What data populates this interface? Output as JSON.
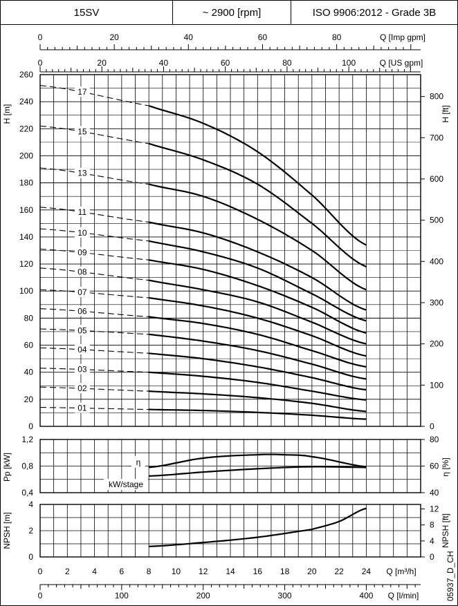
{
  "header": {
    "model": "15SV",
    "speed": "~ 2900 [rpm]",
    "standard": "ISO 9906:2012 - Grade 3B"
  },
  "axes": {
    "q_imp_gpm": {
      "label": "Q [Imp gpm]",
      "ticks": [
        "0",
        "20",
        "40",
        "60",
        "80"
      ]
    },
    "q_us_gpm": {
      "label": "Q [US gpm]",
      "ticks": [
        "0",
        "20",
        "40",
        "60",
        "80",
        "100"
      ]
    },
    "h_m": {
      "label": "H [m]",
      "ticks": [
        "0",
        "20",
        "40",
        "60",
        "80",
        "100",
        "120",
        "140",
        "160",
        "180",
        "200",
        "220",
        "240",
        "260"
      ]
    },
    "h_ft": {
      "label": "H [ft]",
      "ticks": [
        "0",
        "100",
        "200",
        "300",
        "400",
        "500",
        "600",
        "700",
        "800"
      ]
    },
    "pp_kw": {
      "label": "Pp [kW]",
      "ticks": [
        "0,4",
        "0,8",
        "1,2"
      ]
    },
    "eta": {
      "label": "η [%]",
      "ticks": [
        "40",
        "60",
        "80"
      ]
    },
    "npsh_m": {
      "label": "NPSH [m]",
      "ticks": [
        "0",
        "2",
        "4"
      ]
    },
    "npsh_ft": {
      "label": "NPSH [ft]",
      "ticks": [
        "0",
        "4",
        "8",
        "12"
      ]
    },
    "q_m3h": {
      "label": "Q [m³/h]",
      "ticks": [
        "0",
        "2",
        "4",
        "6",
        "8",
        "10",
        "12",
        "14",
        "16",
        "18",
        "20",
        "22",
        "24"
      ]
    },
    "q_lmin": {
      "label": "Q [l/min]",
      "ticks": [
        "0",
        "100",
        "200",
        "300",
        "400"
      ]
    }
  },
  "stage_labels": {
    "01": "01",
    "02": "02",
    "03": "03",
    "04": "04",
    "05": "05",
    "06": "06",
    "07": "07",
    "08": "08",
    "09": "09",
    "10": "10",
    "11": "11",
    "13": "13",
    "15": "15",
    "17": "17"
  },
  "power_labels": {
    "eta": "η",
    "kw": "kW/stage"
  },
  "code": "05937_D_CH",
  "chart_data": [
    {
      "type": "line",
      "title": "",
      "xlabel": "Q [m³/h]",
      "ylabel": "H [m]",
      "xlim": [
        0,
        28
      ],
      "ylim": [
        0,
        260
      ],
      "dashed_region_x": [
        0,
        8
      ],
      "series": [
        {
          "name": "01",
          "x": [
            0,
            8,
            12,
            16,
            20,
            24
          ],
          "y": [
            14,
            12.5,
            11.7,
            10.3,
            8.2,
            5.3
          ]
        },
        {
          "name": "02",
          "x": [
            0,
            8,
            12,
            16,
            20,
            24
          ],
          "y": [
            29,
            26,
            24,
            21.2,
            17,
            11
          ]
        },
        {
          "name": "03",
          "x": [
            0,
            8,
            12,
            16,
            20,
            24
          ],
          "y": [
            43,
            40,
            37,
            32.5,
            26,
            19.5
          ]
        },
        {
          "name": "04",
          "x": [
            0,
            8,
            12,
            16,
            20,
            24
          ],
          "y": [
            58,
            54,
            50,
            44,
            36,
            27
          ]
        },
        {
          "name": "05",
          "x": [
            0,
            8,
            12,
            16,
            20,
            24
          ],
          "y": [
            72,
            68,
            63,
            56,
            46,
            35
          ]
        },
        {
          "name": "06",
          "x": [
            0,
            8,
            12,
            16,
            20,
            24
          ],
          "y": [
            87,
            81,
            76,
            68,
            56,
            44
          ]
        },
        {
          "name": "07",
          "x": [
            0,
            8,
            12,
            16,
            20,
            24
          ],
          "y": [
            101,
            95,
            89,
            80,
            67,
            52
          ]
        },
        {
          "name": "08",
          "x": [
            0,
            8,
            12,
            16,
            20,
            24
          ],
          "y": [
            117,
            108,
            101,
            92,
            77,
            61
          ]
        },
        {
          "name": "09",
          "x": [
            0,
            8,
            12,
            16,
            20,
            24
          ],
          "y": [
            131,
            123,
            116,
            104,
            88,
            69
          ]
        },
        {
          "name": "10",
          "x": [
            0,
            8,
            12,
            16,
            20,
            24
          ],
          "y": [
            146,
            137,
            129,
            117,
            98,
            78
          ]
        },
        {
          "name": "11",
          "x": [
            0,
            8,
            12,
            16,
            20,
            24
          ],
          "y": [
            162,
            151,
            143,
            129,
            110,
            86
          ]
        },
        {
          "name": "13",
          "x": [
            0,
            8,
            12,
            16,
            20,
            24
          ],
          "y": [
            191,
            179,
            170,
            153,
            130,
            101
          ]
        },
        {
          "name": "15",
          "x": [
            0,
            8,
            12,
            16,
            20,
            24
          ],
          "y": [
            222,
            209,
            197,
            179,
            150,
            118
          ]
        },
        {
          "name": "17",
          "x": [
            0,
            8,
            12,
            16,
            20,
            24
          ],
          "y": [
            252,
            237,
            224,
            203,
            171,
            134
          ]
        }
      ]
    },
    {
      "type": "line",
      "title": "",
      "xlabel": "Q [m³/h]",
      "ylabel": "Pp [kW]",
      "xlim": [
        0,
        28
      ],
      "ylim": [
        0.4,
        1.2
      ],
      "series": [
        {
          "name": "η",
          "axis": "right",
          "x": [
            8,
            12,
            16,
            18,
            20,
            24
          ],
          "y": [
            59,
            66,
            68.5,
            68.5,
            67,
            59.5
          ]
        },
        {
          "name": "kW/stage",
          "axis": "left",
          "x": [
            8,
            12,
            16,
            20,
            24
          ],
          "y": [
            0.65,
            0.71,
            0.76,
            0.79,
            0.78
          ]
        }
      ],
      "eta_ylim": [
        40,
        80
      ]
    },
    {
      "type": "line",
      "title": "",
      "xlabel": "Q [m³/h]",
      "ylabel": "NPSH [m]",
      "xlim": [
        0,
        28
      ],
      "ylim": [
        0,
        4
      ],
      "series": [
        {
          "name": "NPSH",
          "x": [
            8,
            12,
            16,
            20,
            22,
            24
          ],
          "y": [
            0.8,
            1.1,
            1.5,
            2.1,
            2.7,
            3.7
          ]
        }
      ]
    }
  ]
}
